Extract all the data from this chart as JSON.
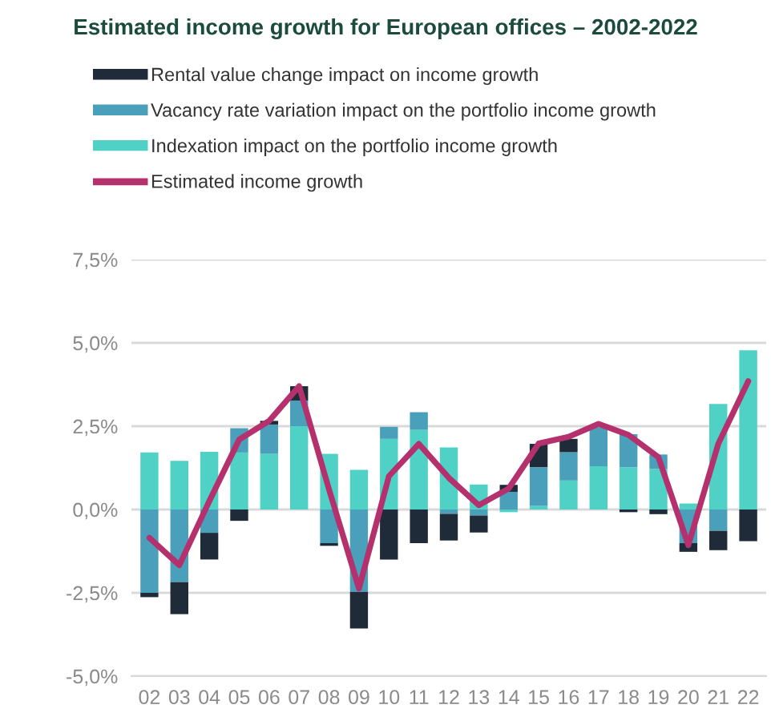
{
  "chart_data": {
    "type": "bar",
    "title": "Estimated income growth for European offices – 2002-2022",
    "categories": [
      "02",
      "03",
      "04",
      "05",
      "06",
      "07",
      "08",
      "09",
      "10",
      "11",
      "12",
      "13",
      "14",
      "15",
      "16",
      "17",
      "18",
      "19",
      "20",
      "21",
      "22"
    ],
    "stacked": true,
    "series": [
      {
        "name": "Indexation impact on the portfolio income growth",
        "color": "#4fd1c5",
        "values": [
          1.71,
          1.46,
          1.73,
          1.71,
          1.67,
          2.5,
          1.67,
          1.19,
          2.12,
          2.39,
          1.86,
          0.75,
          -0.08,
          0.11,
          0.87,
          1.3,
          1.27,
          1.22,
          0.18,
          3.17,
          4.78
        ]
      },
      {
        "name": "Vacancy rate variation impact on the portfolio income growth",
        "color": "#4a9fba",
        "values": [
          -2.5,
          -2.18,
          -0.7,
          0.73,
          0.88,
          0.77,
          -1.01,
          -2.47,
          0.36,
          0.53,
          -0.13,
          -0.18,
          0.53,
          1.16,
          0.85,
          1.17,
          0.99,
          0.43,
          -1.01,
          -0.64,
          null
        ]
      },
      {
        "name": "Rental value change impact on income growth",
        "color": "#1f2b38",
        "values": [
          -0.13,
          -0.96,
          -0.8,
          -0.34,
          0.11,
          0.43,
          -0.08,
          -1.1,
          -1.5,
          -1.01,
          -0.8,
          -0.51,
          0.21,
          0.7,
          0.4,
          null,
          -0.08,
          -0.14,
          -0.26,
          -0.58,
          -0.95
        ]
      },
      {
        "name": "Estimated income growth",
        "type": "line",
        "color": "#b5316e",
        "values": [
          -0.85,
          -1.67,
          0.25,
          2.1,
          2.66,
          3.7,
          0.6,
          -2.37,
          1.0,
          1.97,
          0.95,
          0.13,
          0.63,
          1.98,
          2.18,
          2.57,
          2.24,
          1.57,
          -1.07,
          1.97,
          3.85
        ]
      }
    ],
    "ylim": [
      -5,
      7.5
    ],
    "yticks": [
      {
        "value": -5,
        "label": "-5,0%"
      },
      {
        "value": -2.5,
        "label": "-2,5%"
      },
      {
        "value": 0,
        "label": "0,0%"
      },
      {
        "value": 2.5,
        "label": "2,5%"
      },
      {
        "value": 5,
        "label": "5,0%"
      },
      {
        "value": 7.5,
        "label": "7,5%"
      }
    ],
    "grid": "y",
    "legend": "top",
    "marker": "none",
    "line_style": "solid"
  }
}
